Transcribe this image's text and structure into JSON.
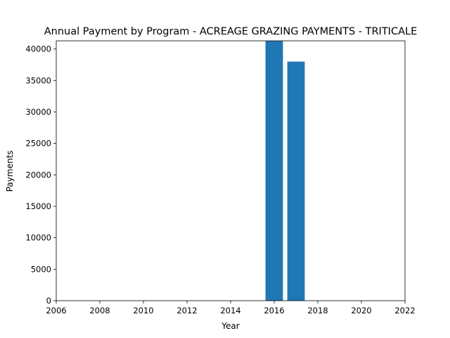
{
  "chart_data": {
    "type": "bar",
    "title": "Annual Payment by Program - ACREAGE GRAZING PAYMENTS - TRITICALE",
    "xlabel": "Year",
    "ylabel": "Payments",
    "xlim": [
      2006,
      2022
    ],
    "ylim": [
      0,
      41300
    ],
    "x_ticks": [
      "2006",
      "2008",
      "2010",
      "2012",
      "2014",
      "2016",
      "2018",
      "2020",
      "2022"
    ],
    "y_ticks": [
      "0",
      "5000",
      "10000",
      "15000",
      "20000",
      "25000",
      "30000",
      "35000",
      "40000"
    ],
    "bar_width_years": 0.8,
    "grid": false,
    "legend": "none",
    "categories": [
      2016,
      2017
    ],
    "values": [
      41300,
      38000
    ],
    "colors": {
      "bar": "#1f77b4",
      "axes": "#000000",
      "background": "#ffffff"
    }
  }
}
